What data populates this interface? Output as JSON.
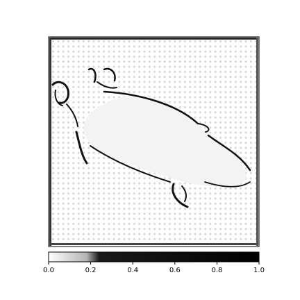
{
  "chart_data": {
    "type": "heatmap",
    "title": "",
    "xlabel": "",
    "ylabel": "",
    "colormap": "gray_r",
    "vmin": 0.0,
    "vmax": 1.0,
    "colorbar": {
      "orientation": "horizontal",
      "location": "bottom",
      "ticks": [
        0.0,
        0.2,
        0.4,
        0.6,
        0.8,
        1.0
      ],
      "tick_labels": [
        "0.0",
        "0.2",
        "0.4",
        "0.6",
        "0.8",
        "1.0"
      ]
    },
    "image": {
      "description_free": true,
      "background_value": 0.0,
      "grid_artifact_value": 0.12,
      "dark_edge_value": 0.9
    }
  }
}
